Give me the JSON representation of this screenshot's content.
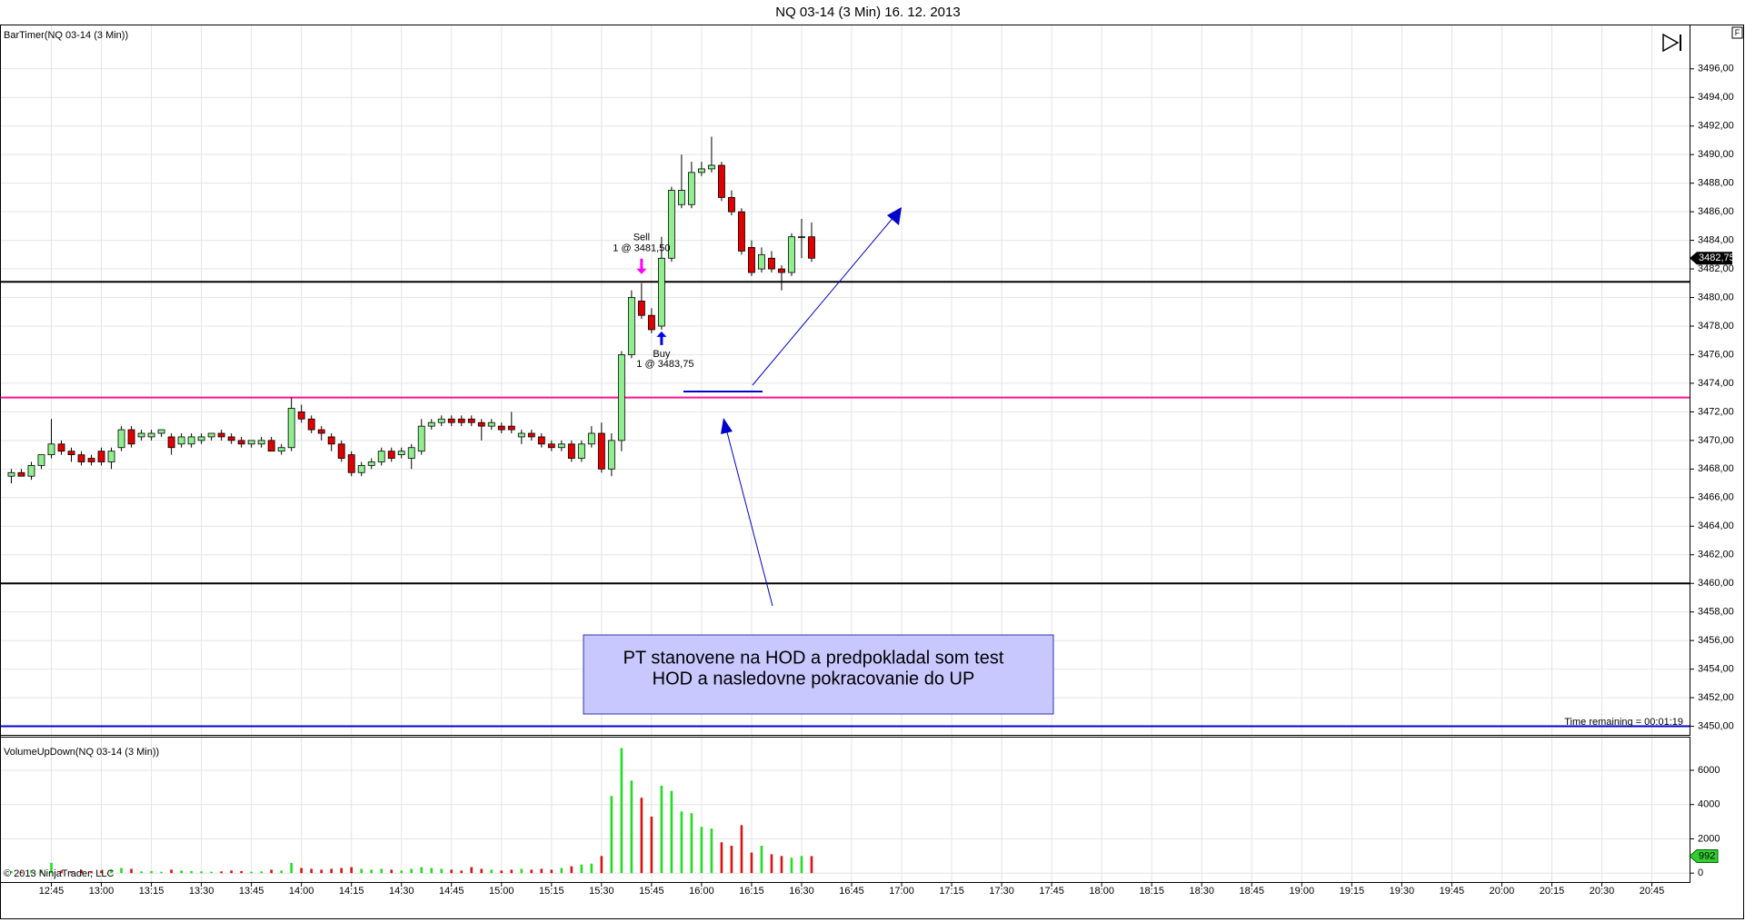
{
  "chart_data": [
    {
      "type": "candlestick",
      "title": "NQ 03-14 (3 Min)  16. 12. 2013",
      "indicator_label": "BarTimer(NQ 03-14 (3 Min))",
      "time_remaining": "Time remaining = 00:01:19",
      "last_price_label": "3482,75",
      "up_color": "#90ee90",
      "down_color": "#e00000",
      "grid": true,
      "xlim": [
        749.6,
        1256.3
      ],
      "ylim": [
        3449.4,
        3499.1
      ],
      "xticks": [
        {
          "value": 765,
          "label": "12:45"
        },
        {
          "value": 780,
          "label": "13:00"
        },
        {
          "value": 795,
          "label": "13:15"
        },
        {
          "value": 810,
          "label": "13:30"
        },
        {
          "value": 825,
          "label": "13:45"
        },
        {
          "value": 840,
          "label": "14:00"
        },
        {
          "value": 855,
          "label": "14:15"
        },
        {
          "value": 870,
          "label": "14:30"
        },
        {
          "value": 885,
          "label": "14:45"
        },
        {
          "value": 900,
          "label": "15:00"
        },
        {
          "value": 915,
          "label": "15:15"
        },
        {
          "value": 930,
          "label": "15:30"
        },
        {
          "value": 945,
          "label": "15:45"
        },
        {
          "value": 960,
          "label": "16:00"
        },
        {
          "value": 975,
          "label": "16:15"
        },
        {
          "value": 990,
          "label": "16:30"
        },
        {
          "value": 1005,
          "label": "16:45"
        },
        {
          "value": 1020,
          "label": "17:00"
        },
        {
          "value": 1035,
          "label": "17:15"
        },
        {
          "value": 1050,
          "label": "17:30"
        },
        {
          "value": 1065,
          "label": "17:45"
        },
        {
          "value": 1080,
          "label": "18:00"
        },
        {
          "value": 1095,
          "label": "18:15"
        },
        {
          "value": 1110,
          "label": "18:30"
        },
        {
          "value": 1125,
          "label": "18:45"
        },
        {
          "value": 1140,
          "label": "19:00"
        },
        {
          "value": 1155,
          "label": "19:15"
        },
        {
          "value": 1170,
          "label": "19:30"
        },
        {
          "value": 1185,
          "label": "19:45"
        },
        {
          "value": 1200,
          "label": "20:00"
        },
        {
          "value": 1215,
          "label": "20:15"
        },
        {
          "value": 1230,
          "label": "20:30"
        },
        {
          "value": 1245,
          "label": "20:45"
        }
      ],
      "yticks": [
        {
          "value": 3450,
          "label": "3450,00"
        },
        {
          "value": 3452,
          "label": "3452,00"
        },
        {
          "value": 3454,
          "label": "3454,00"
        },
        {
          "value": 3456,
          "label": "3456,00"
        },
        {
          "value": 3458,
          "label": "3458,00"
        },
        {
          "value": 3460,
          "label": "3460,00"
        },
        {
          "value": 3462,
          "label": "3462,00"
        },
        {
          "value": 3464,
          "label": "3464,00"
        },
        {
          "value": 3466,
          "label": "3466,00"
        },
        {
          "value": 3468,
          "label": "3468,00"
        },
        {
          "value": 3470,
          "label": "3470,00"
        },
        {
          "value": 3472,
          "label": "3472,00"
        },
        {
          "value": 3474,
          "label": "3474,00"
        },
        {
          "value": 3476,
          "label": "3476,00"
        },
        {
          "value": 3478,
          "label": "3478,00"
        },
        {
          "value": 3480,
          "label": "3480,00"
        },
        {
          "value": 3482,
          "label": "3482,00"
        },
        {
          "value": 3484,
          "label": "3484,00"
        },
        {
          "value": 3486,
          "label": "3486,00"
        },
        {
          "value": 3488,
          "label": "3488,00"
        },
        {
          "value": 3490,
          "label": "3490,00"
        },
        {
          "value": 3492,
          "label": "3492,00"
        },
        {
          "value": 3494,
          "label": "3494,00"
        },
        {
          "value": 3496,
          "label": "3496,00"
        }
      ],
      "x": [
        753,
        756,
        759,
        762,
        765,
        768,
        771,
        774,
        777,
        780,
        783,
        786,
        789,
        792,
        795,
        798,
        801,
        804,
        807,
        810,
        813,
        816,
        819,
        822,
        825,
        828,
        831,
        834,
        837,
        840,
        843,
        846,
        849,
        852,
        855,
        858,
        861,
        864,
        867,
        870,
        873,
        876,
        879,
        882,
        885,
        888,
        891,
        894,
        897,
        900,
        903,
        906,
        909,
        912,
        915,
        918,
        921,
        924,
        927,
        930,
        933,
        936,
        939,
        942,
        945,
        948,
        951,
        954,
        957,
        960,
        963,
        966,
        969,
        972,
        975,
        978,
        981,
        984,
        987,
        990,
        993
      ],
      "open": [
        3467.5,
        3467.75,
        3467.5,
        3468.25,
        3469,
        3469.75,
        3469.25,
        3469,
        3468.75,
        3469.25,
        3468.5,
        3469.5,
        3470.75,
        3470.25,
        3470.25,
        3470.5,
        3470.25,
        3469.75,
        3469.75,
        3470,
        3470.25,
        3470.5,
        3470.25,
        3470,
        3469.75,
        3469.75,
        3470,
        3469.25,
        3469.5,
        3472,
        3471.5,
        3470.75,
        3470.25,
        3469.75,
        3469,
        3467.75,
        3468.25,
        3468.5,
        3469.25,
        3469,
        3468.75,
        3469.25,
        3471,
        3471.25,
        3471.5,
        3471.5,
        3471.5,
        3471.25,
        3471,
        3471,
        3471,
        3470.25,
        3470.5,
        3470.25,
        3469.75,
        3469.5,
        3469.75,
        3468.75,
        3469.75,
        3470.5,
        3468,
        3470,
        3476,
        3479.75,
        3478.75,
        3478,
        3482.75,
        3486.5,
        3486.5,
        3488.75,
        3489,
        3489.25,
        3487,
        3486,
        3483.5,
        3482,
        3482.75,
        3482,
        3481.75,
        3484.25,
        3484.25
      ],
      "high": [
        3468,
        3468,
        3468.5,
        3469,
        3471.5,
        3470,
        3469.5,
        3469.25,
        3469,
        3469.5,
        3469.5,
        3471,
        3471,
        3470.75,
        3470.75,
        3470.75,
        3470.5,
        3470.5,
        3470.5,
        3470.5,
        3470.5,
        3470.75,
        3470.5,
        3470.25,
        3470,
        3470.25,
        3470.25,
        3469.75,
        3473,
        3472.5,
        3471.75,
        3471,
        3470.5,
        3470,
        3469.25,
        3468.5,
        3468.75,
        3469.5,
        3469.5,
        3469.5,
        3469.75,
        3471.5,
        3471.5,
        3471.75,
        3471.75,
        3471.75,
        3471.75,
        3471.5,
        3471.5,
        3471.25,
        3472,
        3470.75,
        3470.75,
        3470.5,
        3470,
        3470,
        3470,
        3470,
        3471,
        3471.25,
        3470.5,
        3476.25,
        3480.5,
        3481,
        3479.25,
        3484.25,
        3487.75,
        3490,
        3489.5,
        3489.5,
        3491.25,
        3489.5,
        3487.5,
        3486.25,
        3484,
        3483.5,
        3483.25,
        3482.25,
        3484.5,
        3485.5,
        3485.25
      ],
      "low": [
        3467,
        3467.5,
        3467.25,
        3468,
        3468.75,
        3469,
        3468.5,
        3468.25,
        3468.25,
        3468.25,
        3468,
        3469.25,
        3469.5,
        3470,
        3470,
        3470.25,
        3469,
        3469.5,
        3469.5,
        3469.75,
        3470,
        3470,
        3469.75,
        3469.5,
        3469.5,
        3469.5,
        3469.25,
        3469,
        3469.25,
        3471.25,
        3470.5,
        3470,
        3469.25,
        3468.5,
        3467.5,
        3467.5,
        3468,
        3468.25,
        3468.5,
        3468.75,
        3468,
        3469,
        3470.75,
        3471,
        3471,
        3471,
        3471,
        3470,
        3470.75,
        3470.5,
        3470.5,
        3469.75,
        3470,
        3469.5,
        3469.25,
        3469.25,
        3468.5,
        3468.5,
        3469.5,
        3467.75,
        3467.5,
        3469.25,
        3475.75,
        3478.5,
        3477.5,
        3477.75,
        3482.5,
        3486.25,
        3486.25,
        3488.5,
        3488.75,
        3486.75,
        3485.75,
        3483,
        3481.5,
        3481.75,
        3481.75,
        3480.5,
        3481.5,
        3482.75,
        3482.5
      ],
      "close": [
        3467.75,
        3467.5,
        3468.25,
        3469,
        3469.75,
        3469.25,
        3469,
        3468.5,
        3468.5,
        3468.5,
        3469.25,
        3470.75,
        3469.75,
        3470.5,
        3470.5,
        3470.75,
        3469.5,
        3470.25,
        3470.25,
        3470.25,
        3470.5,
        3470.25,
        3470,
        3469.75,
        3470,
        3470,
        3469.25,
        3469.5,
        3472.25,
        3471.5,
        3470.75,
        3470.5,
        3469.75,
        3468.75,
        3467.75,
        3468.25,
        3468.5,
        3469.25,
        3468.75,
        3469.25,
        3469.5,
        3471,
        3471.25,
        3471.5,
        3471.25,
        3471.25,
        3471.25,
        3471,
        3471.25,
        3470.75,
        3470.75,
        3470.5,
        3470.25,
        3469.75,
        3469.5,
        3469.75,
        3468.75,
        3469.75,
        3470.5,
        3468,
        3470,
        3476,
        3480,
        3478.75,
        3477.75,
        3482.75,
        3487.5,
        3487.5,
        3488.75,
        3489,
        3489.25,
        3487,
        3486,
        3483.25,
        3481.75,
        3483,
        3482,
        3481.75,
        3484.25,
        3484.25,
        3482.75
      ],
      "levels": [
        {
          "value": 3481.1,
          "color": "#000000"
        },
        {
          "value": 3473,
          "color": "#ff1493"
        },
        {
          "value": 3460,
          "color": "#000000"
        },
        {
          "value": 3450,
          "color": "#0000cd"
        }
      ],
      "executions": [
        {
          "label": "Sell",
          "detail": "1 @ 3481,50",
          "x": 942,
          "color": "#ff00ff",
          "position": "above"
        },
        {
          "label": "Buy",
          "detail": "1 @ 3483,75",
          "x": 948,
          "color": "#0000ff",
          "position": "below"
        }
      ]
    },
    {
      "type": "volume",
      "title": "VolumeUpDown(NQ 03-14 (3 Min))",
      "last_label": "992",
      "xlim": [
        749.6,
        1256.3
      ],
      "ylim": [
        -520,
        7960
      ],
      "yticks": [
        0,
        2000,
        4000,
        6000
      ],
      "x": [
        753,
        756,
        759,
        762,
        765,
        768,
        771,
        774,
        777,
        780,
        783,
        786,
        789,
        792,
        795,
        798,
        801,
        804,
        807,
        810,
        813,
        816,
        819,
        822,
        825,
        828,
        831,
        834,
        837,
        840,
        843,
        846,
        849,
        852,
        855,
        858,
        861,
        864,
        867,
        870,
        873,
        876,
        879,
        882,
        885,
        888,
        891,
        894,
        897,
        900,
        903,
        906,
        909,
        912,
        915,
        918,
        921,
        924,
        927,
        930,
        933,
        936,
        939,
        942,
        945,
        948,
        951,
        954,
        957,
        960,
        963,
        966,
        969,
        972,
        975,
        978,
        981,
        984,
        987,
        990,
        993
      ],
      "values": [
        120,
        80,
        150,
        200,
        600,
        150,
        100,
        180,
        120,
        150,
        200,
        300,
        250,
        100,
        120,
        80,
        200,
        150,
        120,
        100,
        80,
        100,
        150,
        120,
        80,
        100,
        200,
        150,
        600,
        300,
        250,
        200,
        250,
        300,
        350,
        250,
        200,
        250,
        200,
        150,
        250,
        350,
        300,
        250,
        200,
        150,
        350,
        250,
        200,
        150,
        200,
        250,
        200,
        250,
        200,
        300,
        400,
        500,
        550,
        1000,
        4500,
        7300,
        5400,
        4400,
        3300,
        5100,
        4800,
        3600,
        3500,
        2700,
        2600,
        1800,
        1600,
        2800,
        1200,
        1600,
        1100,
        1000,
        900,
        1000,
        992
      ]
    }
  ],
  "copyright": "© 2013 NinjaTrader, LLC",
  "note": {
    "lines": [
      "PT stanovene na HOD a predpokladal som test",
      "HOD a nasledovne pokracovanie do UP"
    ]
  },
  "button": "F"
}
